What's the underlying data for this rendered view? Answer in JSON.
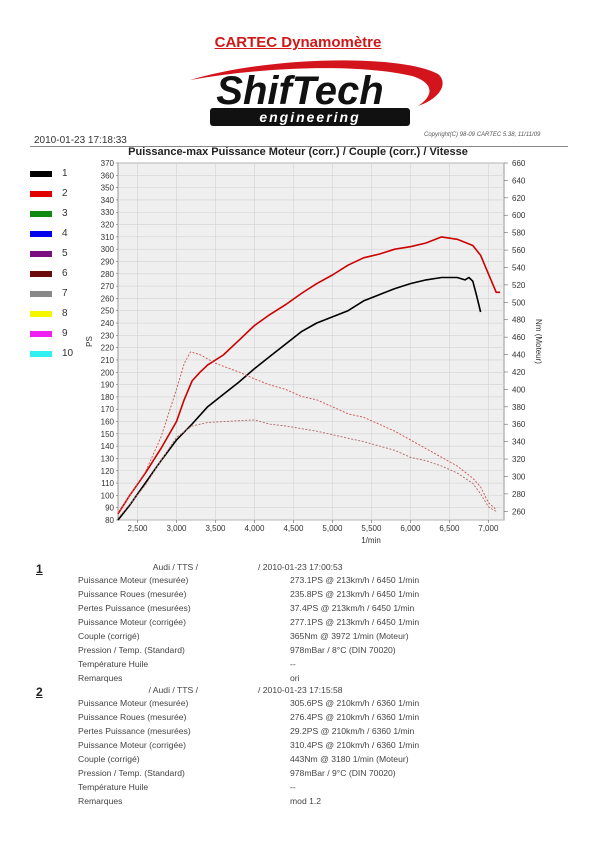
{
  "header": {
    "title": "CARTEC Dynamomètre",
    "logo_main": "ShifTech",
    "logo_sub": "engineering",
    "datetime": "2010-01-23 17:18:33",
    "copyright": "Copyright(C) 98-09 CARTEC 5.38, 11/11/09"
  },
  "chart_title": "Puissance-max Puissance Moteur (corr.) / Couple (corr.) / Vitesse",
  "legend": [
    {
      "label": "1",
      "color": "#000000"
    },
    {
      "label": "2",
      "color": "#e00000"
    },
    {
      "label": "3",
      "color": "#108a10"
    },
    {
      "label": "4",
      "color": "#0000ee"
    },
    {
      "label": "5",
      "color": "#7a1080"
    },
    {
      "label": "6",
      "color": "#6a0a0a"
    },
    {
      "label": "7",
      "color": "#888888"
    },
    {
      "label": "8",
      "color": "#f6f600"
    },
    {
      "label": "9",
      "color": "#f020f0"
    },
    {
      "label": "10",
      "color": "#30f0f0"
    }
  ],
  "chart_data": {
    "type": "line",
    "xlabel": "1/min",
    "ylabel": "PS",
    "y2label": "Nm (Moteur)",
    "xlim": [
      2250,
      7200
    ],
    "ylim": [
      80,
      370
    ],
    "y2lim": [
      250,
      660
    ],
    "xticks": [
      "2,500",
      "3,000",
      "3,500",
      "4,000",
      "4,500",
      "5,000",
      "5,500",
      "6,000",
      "6,500",
      "7,000"
    ],
    "xtick_values": [
      2500,
      3000,
      3500,
      4000,
      4500,
      5000,
      5500,
      6000,
      6500,
      7000
    ],
    "yticks": [
      80,
      90,
      100,
      110,
      120,
      130,
      140,
      150,
      160,
      170,
      180,
      190,
      200,
      210,
      220,
      230,
      240,
      250,
      260,
      270,
      280,
      290,
      300,
      310,
      320,
      330,
      340,
      350,
      360,
      370
    ],
    "y2ticks": [
      260,
      280,
      300,
      320,
      340,
      360,
      380,
      400,
      420,
      440,
      460,
      480,
      500,
      520,
      540,
      560,
      580,
      600,
      620,
      640,
      660
    ],
    "grid": true,
    "series": [
      {
        "name": "1",
        "kind": "power",
        "axis": "left",
        "color": "#000000",
        "x": [
          2250,
          2400,
          2600,
          2800,
          3000,
          3200,
          3400,
          3600,
          3800,
          4000,
          4200,
          4400,
          4600,
          4800,
          5000,
          5200,
          5400,
          5600,
          5800,
          6000,
          6200,
          6400,
          6600,
          6700,
          6750,
          6800,
          6850,
          6900
        ],
        "y": [
          80,
          92,
          110,
          128,
          145,
          158,
          172,
          182,
          192,
          203,
          213,
          223,
          233,
          240,
          245,
          250,
          258,
          263,
          268,
          272,
          275,
          277,
          277,
          275,
          277,
          274,
          262,
          249
        ]
      },
      {
        "name": "2",
        "kind": "power",
        "axis": "left",
        "color": "#cc0000",
        "x": [
          2250,
          2400,
          2600,
          2800,
          3000,
          3100,
          3200,
          3300,
          3400,
          3600,
          3800,
          4000,
          4200,
          4400,
          4600,
          4800,
          5000,
          5200,
          5400,
          5600,
          5800,
          6000,
          6200,
          6400,
          6600,
          6800,
          6900,
          7000,
          7100,
          7150
        ],
        "y": [
          85,
          100,
          118,
          138,
          160,
          178,
          193,
          200,
          206,
          214,
          226,
          238,
          247,
          255,
          264,
          272,
          279,
          287,
          293,
          296,
          300,
          302,
          305,
          310,
          308,
          303,
          295,
          280,
          265,
          265
        ]
      },
      {
        "name": "1",
        "kind": "torque",
        "axis": "right",
        "color": "#b06868",
        "x": [
          2250,
          2400,
          2600,
          2800,
          3000,
          3200,
          3400,
          3600,
          3800,
          4000,
          4200,
          4400,
          4600,
          4800,
          5000,
          5200,
          5400,
          5600,
          5800,
          6000,
          6200,
          6400,
          6600,
          6800,
          6900,
          7000,
          7100
        ],
        "y": [
          252,
          268,
          290,
          318,
          345,
          358,
          362,
          363,
          364,
          365,
          360,
          358,
          355,
          352,
          348,
          344,
          340,
          335,
          330,
          322,
          318,
          312,
          304,
          292,
          280,
          265,
          260
        ]
      },
      {
        "name": "2",
        "kind": "torque",
        "axis": "right",
        "color": "#cc5050",
        "x": [
          2250,
          2400,
          2600,
          2800,
          3000,
          3100,
          3180,
          3300,
          3500,
          3800,
          4000,
          4200,
          4400,
          4600,
          4800,
          5000,
          5200,
          5400,
          5600,
          5800,
          6000,
          6200,
          6400,
          6600,
          6800,
          6900,
          7000,
          7100
        ],
        "y": [
          258,
          278,
          305,
          345,
          400,
          430,
          443,
          440,
          430,
          420,
          412,
          405,
          400,
          392,
          388,
          380,
          372,
          368,
          360,
          352,
          342,
          332,
          322,
          312,
          298,
          288,
          270,
          262
        ]
      }
    ]
  },
  "results": [
    {
      "num": "1",
      "head_left": "Audi / TTS /",
      "head_right": "/ 2010-01-23 17:00:53",
      "rows": [
        {
          "label": "Puissance Moteur (mesurée)",
          "value": "273.1PS @ 213km/h / 6450 1/min"
        },
        {
          "label": "Puissance Roues (mesurée)",
          "value": "235.8PS @ 213km/h / 6450 1/min"
        },
        {
          "label": "Pertes Puissance (mesurées)",
          "value": "37.4PS @ 213km/h / 6450 1/min"
        },
        {
          "label": "Puissance Moteur (corrigée)",
          "value": "277.1PS @ 213km/h / 6450 1/min"
        },
        {
          "label": "Couple (corrigé)",
          "value": "365Nm @ 3972 1/min (Moteur)"
        },
        {
          "label": "Pression / Temp. (Standard)",
          "value": "978mBar / 8°C   (DIN 70020)"
        },
        {
          "label": "Température Huile",
          "value": "--"
        },
        {
          "label": "Remarques",
          "value": "ori"
        }
      ]
    },
    {
      "num": "2",
      "head_left": "/ Audi / TTS /",
      "head_right": "/ 2010-01-23 17:15:58",
      "rows": [
        {
          "label": "Puissance Moteur (mesurée)",
          "value": "305.6PS @ 210km/h / 6360 1/min"
        },
        {
          "label": "Puissance Roues (mesurée)",
          "value": "276.4PS @ 210km/h / 6360 1/min"
        },
        {
          "label": "Pertes Puissance (mesurées)",
          "value": "29.2PS @ 210km/h / 6360 1/min"
        },
        {
          "label": "Puissance Moteur (corrigée)",
          "value": "310.4PS @ 210km/h / 6360 1/min"
        },
        {
          "label": "Couple (corrigé)",
          "value": "443Nm @ 3180 1/min (Moteur)"
        },
        {
          "label": "Pression / Temp. (Standard)",
          "value": "978mBar / 9°C   (DIN 70020)"
        },
        {
          "label": "Température Huile",
          "value": "--"
        },
        {
          "label": "Remarques",
          "value": "mod 1.2"
        }
      ]
    }
  ]
}
